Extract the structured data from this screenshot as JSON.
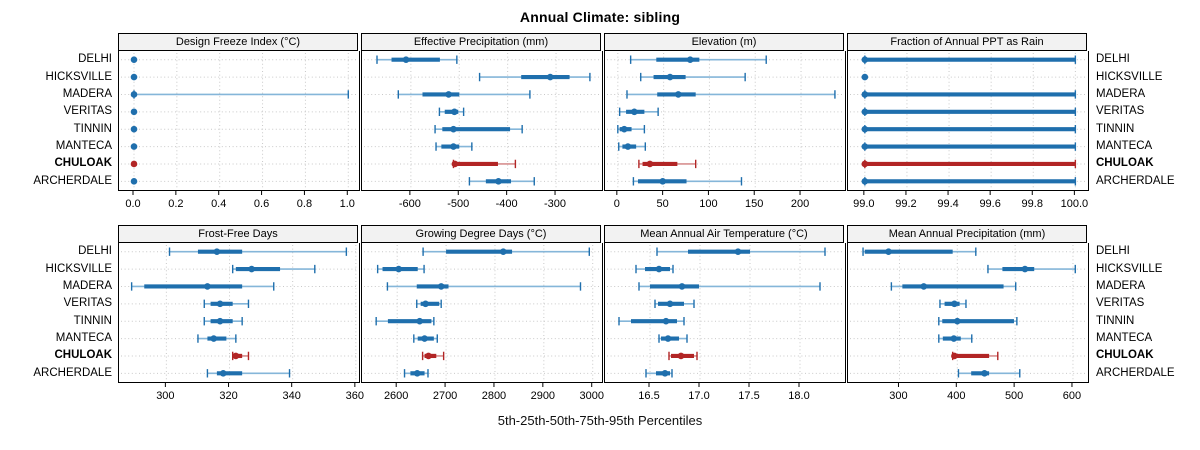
{
  "title": "Annual Climate: sibling",
  "caption": "5th-25th-50th-75th-95th Percentiles",
  "sites": [
    "DELHI",
    "HICKSVILLE",
    "MADERA",
    "VERITAS",
    "TINNIN",
    "MANTECA",
    "CHULOAK",
    "ARCHERDALE"
  ],
  "highlight_site": "CHULOAK",
  "colors": {
    "blue_main": "#1f6fad",
    "blue_light": "#85b6d9",
    "red_main": "#b22525",
    "red_light": "#d79090",
    "grid": "#c9c9c9",
    "header_bg": "#f2f2f2",
    "border": "#000000"
  },
  "chart_data": {
    "type": "dot-interval-plot",
    "percentile_levels": [
      5,
      25,
      50,
      75,
      95
    ],
    "legend_note": "5th-25th-50th-75th-95th Percentiles",
    "grid": "dotted",
    "panels_per_row": 4,
    "panels": [
      {
        "id": "design-freeze-index",
        "title": "Design Freeze Index (°C)",
        "xlim": [
          -0.07,
          1.05
        ],
        "ticks": [
          0,
          0.2,
          0.4,
          0.6,
          0.8,
          1.0
        ],
        "tick_labels": [
          "0.0",
          "0.2",
          "0.4",
          "0.6",
          "0.8",
          "1.0"
        ],
        "percentiles": {
          "DELHI": [
            0,
            0,
            0,
            0,
            0
          ],
          "HICKSVILLE": [
            0,
            0,
            0,
            0,
            0
          ],
          "MADERA": [
            0,
            0,
            0,
            0,
            1.0
          ],
          "VERITAS": [
            0,
            0,
            0,
            0,
            0
          ],
          "TINNIN": [
            0,
            0,
            0,
            0,
            0
          ],
          "MANTECA": [
            0,
            0,
            0,
            0,
            0
          ],
          "CHULOAK": [
            0,
            0,
            0,
            0,
            0
          ],
          "ARCHERDALE": [
            0,
            0,
            0,
            0,
            0
          ]
        }
      },
      {
        "id": "effective-precipitation",
        "title": "Effective Precipitation (mm)",
        "xlim": [
          -701,
          -205
        ],
        "ticks": [
          -600,
          -500,
          -400,
          -300
        ],
        "tick_labels": [
          "-600",
          "-500",
          "-400",
          "-300"
        ],
        "percentiles": {
          "DELHI": [
            -670,
            -640,
            -610,
            -540,
            -505
          ],
          "HICKSVILLE": [
            -458,
            -372,
            -312,
            -272,
            -230
          ],
          "MADERA": [
            -626,
            -576,
            -522,
            -500,
            -354
          ],
          "VERITAS": [
            -541,
            -530,
            -510,
            -502,
            -491
          ],
          "TINNIN": [
            -550,
            -535,
            -512,
            -395,
            -370
          ],
          "MANTECA": [
            -548,
            -537,
            -512,
            -500,
            -474
          ],
          "CHULOAK": [
            -512,
            -510,
            -509,
            -420,
            -384
          ],
          "ARCHERDALE": [
            -479,
            -445,
            -419,
            -393,
            -345
          ]
        }
      },
      {
        "id": "elevation",
        "title": "Elevation (m)",
        "xlim": [
          -14,
          248
        ],
        "ticks": [
          0,
          50,
          100,
          150,
          200
        ],
        "tick_labels": [
          "0",
          "50",
          "100",
          "150",
          "200"
        ],
        "percentiles": {
          "DELHI": [
            14,
            42,
            79,
            89,
            162
          ],
          "HICKSVILLE": [
            25,
            39,
            57,
            74,
            139
          ],
          "MADERA": [
            10,
            43,
            66,
            85,
            237
          ],
          "VERITAS": [
            2,
            9,
            18,
            29,
            44
          ],
          "TINNIN": [
            0,
            2,
            7,
            15,
            29
          ],
          "MANTECA": [
            1,
            5,
            11,
            20,
            30
          ],
          "CHULOAK": [
            23,
            27,
            35,
            65,
            85
          ],
          "ARCHERDALE": [
            17,
            22,
            49,
            75,
            135
          ]
        }
      },
      {
        "id": "fraction-annual-ppt-as-rain",
        "title": "Fraction of Annual PPT as Rain",
        "xlim": [
          98.92,
          100.06
        ],
        "ticks": [
          99.0,
          99.2,
          99.4,
          99.6,
          99.8,
          100.0
        ],
        "tick_labels": [
          "99.0",
          "99.2",
          "99.4",
          "99.6",
          "99.8",
          "100.0"
        ],
        "percentiles": {
          "DELHI": [
            99,
            99,
            99,
            100,
            100
          ],
          "HICKSVILLE": [
            99,
            99,
            99,
            99,
            99
          ],
          "MADERA": [
            99,
            99,
            99,
            100,
            100
          ],
          "VERITAS": [
            99,
            99,
            99,
            100,
            100
          ],
          "TINNIN": [
            99,
            99,
            99,
            100,
            100
          ],
          "MANTECA": [
            99,
            99,
            99,
            100,
            100
          ],
          "CHULOAK": [
            99,
            99,
            99,
            100,
            100
          ],
          "ARCHERDALE": [
            99,
            99,
            99,
            100,
            100
          ]
        }
      },
      {
        "id": "frost-free-days",
        "title": "Frost-Free Days",
        "xlim": [
          285,
          361
        ],
        "ticks": [
          300,
          320,
          340,
          360
        ],
        "tick_labels": [
          "300",
          "320",
          "340",
          "360"
        ],
        "percentiles": {
          "DELHI": [
            301,
            310,
            316,
            324,
            357
          ],
          "HICKSVILLE": [
            321,
            322,
            327,
            336,
            347
          ],
          "MADERA": [
            289,
            293,
            313,
            324,
            334
          ],
          "VERITAS": [
            312,
            314,
            317,
            321,
            326
          ],
          "TINNIN": [
            312,
            314,
            317,
            321,
            324
          ],
          "MANTECA": [
            310,
            313,
            315,
            319,
            322
          ],
          "CHULOAK": [
            321,
            321,
            322,
            324,
            326
          ],
          "ARCHERDALE": [
            313,
            316,
            318,
            324,
            339
          ]
        }
      },
      {
        "id": "growing-degree-days",
        "title": "Growing Degree Days (°C)",
        "xlim": [
          2528,
          3019
        ],
        "ticks": [
          2600,
          2700,
          2800,
          2900,
          3000
        ],
        "tick_labels": [
          "2600",
          "2700",
          "2800",
          "2900",
          "3000"
        ],
        "percentiles": {
          "DELHI": [
            2653,
            2700,
            2817,
            2835,
            2993
          ],
          "HICKSVILLE": [
            2560,
            2570,
            2603,
            2642,
            2655
          ],
          "MADERA": [
            2580,
            2640,
            2690,
            2705,
            2975
          ],
          "VERITAS": [
            2640,
            2648,
            2658,
            2686,
            2690
          ],
          "TINNIN": [
            2557,
            2581,
            2646,
            2670,
            2675
          ],
          "MANTECA": [
            2634,
            2642,
            2656,
            2675,
            2682
          ],
          "CHULOAK": [
            2652,
            2656,
            2664,
            2680,
            2695
          ],
          "ARCHERDALE": [
            2615,
            2627,
            2641,
            2656,
            2663
          ]
        }
      },
      {
        "id": "mean-annual-air-temperature",
        "title": "Mean Annual Air Temperature (°C)",
        "xlim": [
          16.05,
          18.45
        ],
        "ticks": [
          16.5,
          17.0,
          17.5,
          18.0
        ],
        "tick_labels": [
          "16.5",
          "17.0",
          "17.5",
          "18.0"
        ],
        "percentiles": {
          "DELHI": [
            16.57,
            16.88,
            17.38,
            17.5,
            18.25
          ],
          "HICKSVILLE": [
            16.36,
            16.45,
            16.59,
            16.7,
            16.73
          ],
          "MADERA": [
            16.39,
            16.5,
            16.82,
            16.99,
            18.2
          ],
          "VERITAS": [
            16.55,
            16.58,
            16.7,
            16.84,
            16.94
          ],
          "TINNIN": [
            16.19,
            16.31,
            16.66,
            16.77,
            16.84
          ],
          "MANTECA": [
            16.59,
            16.61,
            16.68,
            16.79,
            16.87
          ],
          "CHULOAK": [
            16.69,
            16.71,
            16.81,
            16.94,
            16.97
          ],
          "ARCHERDALE": [
            16.46,
            16.56,
            16.65,
            16.7,
            16.72
          ]
        }
      },
      {
        "id": "mean-annual-precipitation",
        "title": "Mean Annual Precipitation (mm)",
        "xlim": [
          211,
          626
        ],
        "ticks": [
          300,
          400,
          500,
          600
        ],
        "tick_labels": [
          "300",
          "400",
          "500",
          "600"
        ],
        "percentiles": {
          "DELHI": [
            237,
            240,
            281,
            392,
            432
          ],
          "HICKSVILLE": [
            453,
            478,
            517,
            533,
            604
          ],
          "MADERA": [
            286,
            305,
            342,
            480,
            501
          ],
          "VERITAS": [
            370,
            378,
            395,
            404,
            415
          ],
          "TINNIN": [
            368,
            374,
            400,
            498,
            503
          ],
          "MANTECA": [
            368,
            375,
            394,
            406,
            425
          ],
          "CHULOAK": [
            392,
            393,
            395,
            455,
            470
          ],
          "ARCHERDALE": [
            402,
            424,
            447,
            455,
            508
          ]
        }
      }
    ]
  }
}
